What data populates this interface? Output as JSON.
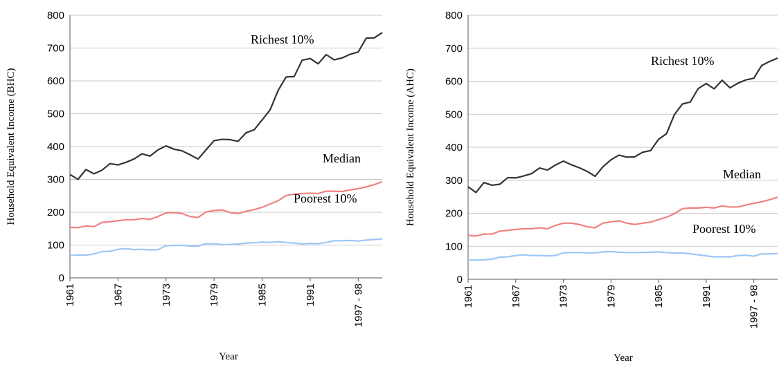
{
  "chart_data": [
    {
      "type": "line",
      "ylabel": "Household Equivalent Income (BHC)",
      "xlabel": "Year",
      "categories": [
        "1961",
        null,
        null,
        null,
        null,
        null,
        "1967",
        null,
        null,
        null,
        null,
        null,
        "1973",
        null,
        null,
        null,
        null,
        null,
        "1979",
        null,
        null,
        null,
        null,
        null,
        "1985",
        null,
        null,
        null,
        null,
        null,
        "1991",
        null,
        null,
        null,
        null,
        null,
        "1997 - 98",
        null,
        null,
        null
      ],
      "ylim": [
        0,
        800
      ],
      "yticks": [
        0,
        100,
        200,
        300,
        400,
        500,
        600,
        700,
        800
      ],
      "grid": true,
      "series": [
        {
          "name": "Richest 10%",
          "color": "#333333",
          "values": [
            315,
            300,
            330,
            317,
            328,
            348,
            344,
            352,
            362,
            378,
            371,
            390,
            402,
            392,
            387,
            375,
            362,
            390,
            418,
            422,
            421,
            416,
            442,
            451,
            481,
            512,
            571,
            612,
            613,
            663,
            668,
            652,
            680,
            664,
            670,
            681,
            688,
            730,
            731,
            747
          ]
        },
        {
          "name": "Median",
          "color": "#f08080",
          "values": [
            154,
            153,
            158,
            156,
            169,
            171,
            174,
            177,
            177,
            181,
            178,
            187,
            198,
            199,
            196,
            187,
            184,
            201,
            205,
            207,
            199,
            196,
            203,
            208,
            215,
            225,
            235,
            251,
            255,
            257,
            258,
            257,
            264,
            264,
            263,
            268,
            272,
            277,
            284,
            293
          ]
        },
        {
          "name": "Poorest 10%",
          "color": "#9cc7f5",
          "values": [
            68,
            70,
            69,
            73,
            80,
            81,
            87,
            89,
            86,
            87,
            85,
            86,
            98,
            99,
            99,
            97,
            97,
            104,
            104,
            101,
            102,
            103,
            106,
            107,
            109,
            108,
            110,
            108,
            106,
            103,
            105,
            104,
            108,
            113,
            113,
            114,
            112,
            115,
            117,
            119
          ]
        }
      ]
    },
    {
      "type": "line",
      "ylabel": "Household Equivalent Income (AHC)",
      "xlabel": "Year",
      "categories": [
        "1961",
        null,
        null,
        null,
        null,
        null,
        "1967",
        null,
        null,
        null,
        null,
        null,
        "1973",
        null,
        null,
        null,
        null,
        null,
        "1979",
        null,
        null,
        null,
        null,
        null,
        "1985",
        null,
        null,
        null,
        null,
        null,
        "1991",
        null,
        null,
        null,
        null,
        null,
        "1997 - 98",
        null,
        null,
        null
      ],
      "ylim": [
        0,
        800
      ],
      "yticks": [
        0,
        100,
        200,
        300,
        400,
        500,
        600,
        700,
        800
      ],
      "grid": true,
      "series": [
        {
          "name": "Richest 10%",
          "color": "#333333",
          "values": [
            280,
            263,
            293,
            285,
            288,
            308,
            307,
            313,
            320,
            337,
            331,
            346,
            358,
            347,
            338,
            327,
            312,
            341,
            362,
            376,
            370,
            371,
            385,
            390,
            424,
            441,
            499,
            531,
            537,
            578,
            593,
            577,
            603,
            580,
            594,
            604,
            609,
            648,
            660,
            670
          ]
        },
        {
          "name": "Median",
          "color": "#f08080",
          "values": [
            133,
            131,
            137,
            137,
            146,
            148,
            151,
            153,
            153,
            156,
            153,
            163,
            170,
            170,
            166,
            159,
            156,
            170,
            174,
            177,
            170,
            166,
            170,
            173,
            181,
            188,
            199,
            214,
            216,
            216,
            218,
            216,
            222,
            219,
            219,
            225,
            230,
            235,
            241,
            249
          ]
        },
        {
          "name": "Poorest 10%",
          "color": "#9cc7f5",
          "values": [
            58,
            58,
            59,
            61,
            67,
            68,
            72,
            74,
            72,
            72,
            71,
            72,
            80,
            81,
            81,
            80,
            80,
            83,
            84,
            82,
            81,
            81,
            81,
            82,
            83,
            81,
            79,
            80,
            77,
            74,
            71,
            68,
            68,
            68,
            72,
            73,
            70,
            77,
            77,
            78
          ]
        }
      ]
    }
  ]
}
